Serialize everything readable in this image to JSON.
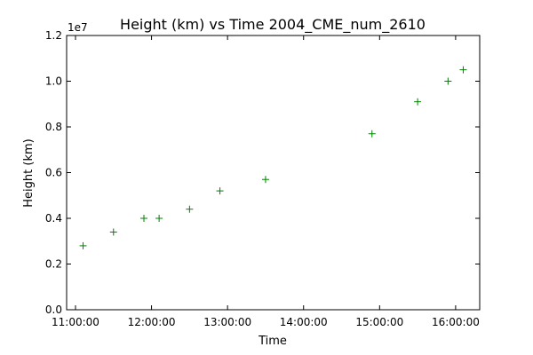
{
  "chart_data": {
    "type": "scatter",
    "title": "Height (km) vs Time 2004_CME_num_2610",
    "xlabel": "Time",
    "ylabel": "Height (km)",
    "y_offset_label": "1e7",
    "y_multiplier": 10000000,
    "xlim": [
      "10:53:00",
      "16:19:00"
    ],
    "ylim": [
      0,
      1.2
    ],
    "x_ticks": [
      "11:00:00",
      "12:00:00",
      "13:00:00",
      "14:00:00",
      "15:00:00",
      "16:00:00"
    ],
    "y_ticks": [
      "0.0",
      "0.2",
      "0.4",
      "0.6",
      "0.8",
      "1.0",
      "1.2"
    ],
    "grid": false,
    "marker": "+",
    "series": [
      {
        "color": "#008000",
        "points": [
          {
            "x": "11:06:00",
            "y": 0.28
          },
          {
            "x": "11:30:00",
            "y": 0.34
          },
          {
            "x": "11:54:00",
            "y": 0.4
          },
          {
            "x": "12:06:00",
            "y": 0.4
          },
          {
            "x": "12:30:00",
            "y": 0.44
          },
          {
            "x": "12:54:00",
            "y": 0.52
          },
          {
            "x": "13:30:00",
            "y": 0.57
          },
          {
            "x": "14:54:00",
            "y": 0.77
          },
          {
            "x": "15:30:00",
            "y": 0.91
          },
          {
            "x": "15:54:00",
            "y": 1.0
          },
          {
            "x": "16:06:00",
            "y": 1.05
          }
        ]
      }
    ]
  }
}
